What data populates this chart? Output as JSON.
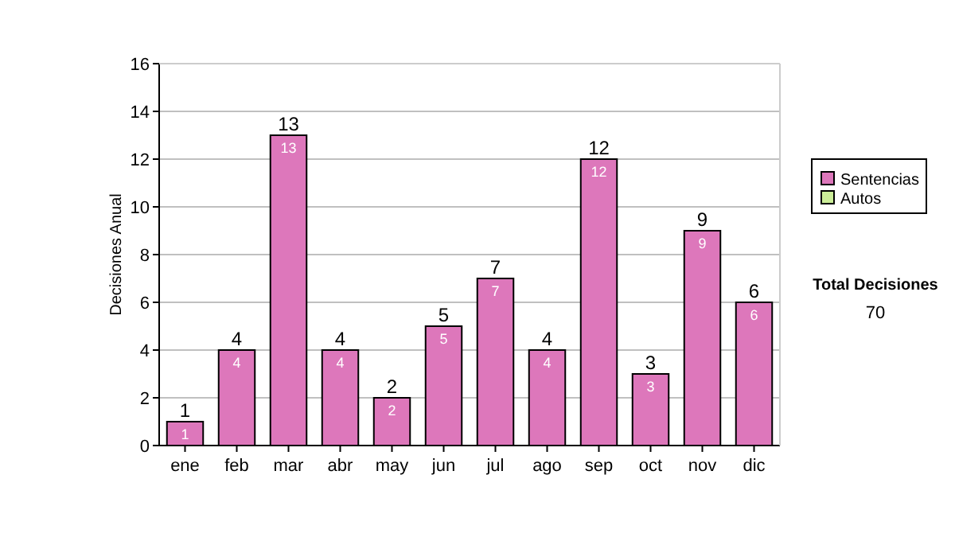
{
  "chart_data": {
    "type": "bar",
    "ylabel": "Decisiones Anual",
    "categories": [
      "ene",
      "feb",
      "mar",
      "abr",
      "may",
      "jun",
      "jul",
      "ago",
      "sep",
      "oct",
      "nov",
      "dic"
    ],
    "series": [
      {
        "name": "Sentencias",
        "color": "#dd77bb",
        "values": [
          1,
          4,
          13,
          4,
          2,
          5,
          7,
          4,
          12,
          3,
          9,
          6
        ],
        "value_labels": [
          "1",
          "4",
          "13",
          "4",
          "2",
          "5",
          "7",
          "4",
          "12",
          "3",
          "9",
          "6"
        ]
      },
      {
        "name": "Autos",
        "color": "#ccee99",
        "values": [
          null,
          null,
          null,
          null,
          null,
          null,
          null,
          null,
          null,
          null,
          null,
          null
        ]
      }
    ],
    "ylim": [
      0,
      16
    ],
    "yticks": [
      0,
      2,
      4,
      6,
      8,
      10,
      12,
      14,
      16
    ],
    "grid": "y",
    "legend": "right",
    "totals": [
      "1",
      "4",
      "13",
      "4",
      "2",
      "5",
      "7",
      "4",
      "12",
      "3",
      "9",
      "6"
    ],
    "annotations": [
      "Total Decisiones",
      "70"
    ]
  }
}
